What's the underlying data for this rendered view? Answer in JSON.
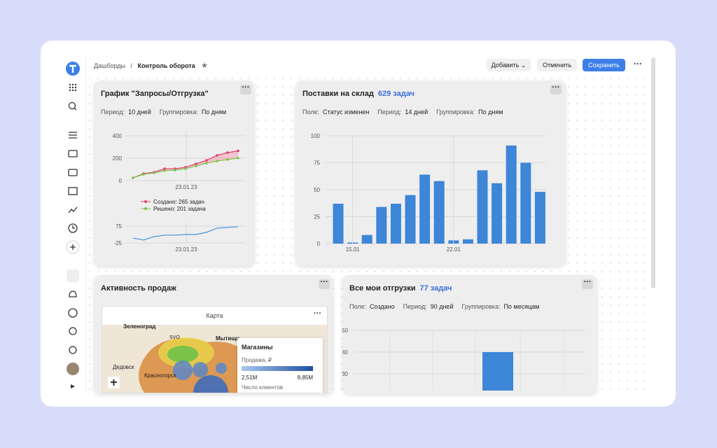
{
  "nav": {
    "breadcrumb": [
      "Дашборды",
      "Контроль оборота"
    ],
    "separator": "/",
    "buttons": {
      "add": "Добавить",
      "cancel": "Отменить",
      "save": "Сохранить"
    }
  },
  "widgets": [
    {
      "title": "График \"Запросы/Отгрузка\"",
      "params": [
        {
          "label": "Период:",
          "value": "10 дней"
        },
        {
          "label": "Группировка:",
          "value": "По дням"
        }
      ],
      "chart": {
        "type": "line",
        "xlabel": "23.01.23",
        "ylim": [
          0,
          400
        ],
        "yticks": [
          0,
          200,
          400
        ],
        "series": [
          {
            "name": "Создано: 265 задач",
            "color": "#e0406a",
            "values": [
              25,
              62,
              75,
              106,
              106,
              119,
              150,
              181,
              225,
              250,
              265
            ]
          },
          {
            "name": "Решено: 201 задача",
            "color": "#7cc34a",
            "values": [
              25,
              56,
              69,
              88,
              94,
              106,
              131,
              156,
              175,
              188,
              201
            ]
          }
        ]
      },
      "chart2": {
        "type": "line",
        "xlabel": "23.01.23",
        "ylim": [
          -25,
          75
        ],
        "yticks": [
          -25,
          75
        ],
        "series": [
          {
            "color": "#4a90e2",
            "values": [
              4,
              -8,
              12,
              21,
              21,
              25,
              25,
              38,
              63,
              67,
              71
            ]
          }
        ]
      }
    },
    {
      "title": "Поставки на склад",
      "count": "629 задач",
      "params": [
        {
          "label": "Поле:",
          "value": "Статус изменен"
        },
        {
          "label": "Период:",
          "value": "14 дней"
        },
        {
          "label": "Группировка:",
          "value": "По дням"
        }
      ],
      "chart": {
        "type": "bar",
        "color": "#3d86d8",
        "ylim": [
          0,
          100
        ],
        "yticks": [
          0,
          25,
          50,
          75,
          100
        ],
        "categories": [
          null,
          "15.01",
          null,
          null,
          null,
          null,
          null,
          null,
          "22.01",
          null,
          null,
          null,
          null,
          null,
          null
        ],
        "values": [
          37,
          1,
          8,
          34,
          37,
          45,
          64,
          58,
          3,
          4,
          68,
          56,
          91,
          75,
          48
        ]
      }
    },
    {
      "title": "Активность продаж",
      "map": {
        "title": "Карта",
        "places": [
          "Зеленоград",
          "SVO",
          "Мытищи",
          "Дедовск",
          "Красногорск"
        ],
        "legend": {
          "title": "Магазины",
          "metric": "Продажа, ₽",
          "min": "2,51M",
          "max": "8,85M",
          "size": "Число клиентов"
        }
      }
    },
    {
      "title": "Все мои отгрузки",
      "count": "77 задач",
      "params": [
        {
          "label": "Поле:",
          "value": "Создано"
        },
        {
          "label": "Период:",
          "value": "90 дней"
        },
        {
          "label": "Группировка:",
          "value": "По месяцам"
        }
      ],
      "chart": {
        "type": "bar",
        "color": "#3d86d8",
        "ylim": [
          0,
          50
        ],
        "yticks": [
          30,
          40,
          50
        ],
        "values": [
          40
        ]
      }
    }
  ]
}
